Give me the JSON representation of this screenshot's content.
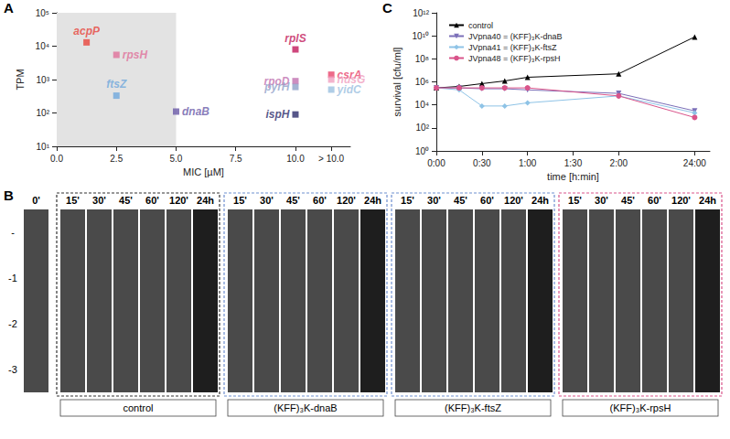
{
  "chart_data": [
    {
      "panel_label": "A",
      "type": "scatter",
      "x_label": "MIC [µM]",
      "y_label": "TPM",
      "log": "y",
      "marker": "square",
      "x": [
        1.25,
        2.5,
        2.5,
        5,
        10,
        10,
        10,
        10,
        11.5,
        11.5,
        11.5
      ],
      "values": [
        13000,
        5500,
        330,
        110,
        8000,
        900,
        600,
        90,
        1400,
        1000,
        500
      ],
      "point_labels": [
        "acpP",
        "rpsH",
        "ftsZ",
        "dnaB",
        "rplS",
        "rpoD",
        "pyrH",
        "ispH",
        "csrA",
        "nusG",
        "yidC"
      ],
      "colors": [
        "#e8453c",
        "#e0709a",
        "#6fa8dc",
        "#6a5aa8",
        "#c2185b",
        "#c070b0",
        "#8fa0c8",
        "#2c2c6c",
        "#e8456c",
        "#f0a0c0",
        "#9bc0e0"
      ],
      "highlight_range": [
        0,
        5
      ],
      "xlim": [
        0,
        12.3
      ],
      "xticks": [
        {
          "value": 0,
          "label": "0.0"
        },
        {
          "value": 2.5,
          "label": "2.5"
        },
        {
          "value": 5,
          "label": "5.0"
        },
        {
          "value": 7.5,
          "label": "7.5"
        },
        {
          "value": 10,
          "label": "10.0"
        },
        {
          "value": 11.5,
          "label": "> 10.0"
        }
      ],
      "ylim": [
        10,
        100000
      ],
      "yticks": [
        {
          "value": 10,
          "label": "10¹"
        },
        {
          "value": 100,
          "label": "10²"
        },
        {
          "value": 1000,
          "label": "10³"
        },
        {
          "value": 10000,
          "label": "10⁴"
        },
        {
          "value": 100000,
          "label": "10⁵"
        }
      ]
    },
    {
      "panel_label": "C",
      "type": "line",
      "x_label": "time [h:min]",
      "y_label": "survival [cfu/ml]",
      "log": "y",
      "legend": "upper left",
      "x": [
        0,
        15,
        30,
        45,
        60,
        120,
        170
      ],
      "series": [
        {
          "name": "control",
          "color": "#000000",
          "marker": "triangle",
          "values": [
            300000,
            400000,
            700000,
            1200000,
            2500000,
            5000000,
            8000000000
          ]
        },
        {
          "name": "JVpna40 = (KFF)₃K-dnaB",
          "color": "#7b6fb8",
          "marker": "triangle_down",
          "values": [
            300000,
            300000,
            250000,
            250000,
            200000,
            100000,
            3000
          ]
        },
        {
          "name": "JVpna41 = (KFF)₃K-ftsZ",
          "color": "#8ec3e6",
          "marker": "diamond",
          "values": [
            300000,
            200000,
            8000,
            8000,
            15000,
            60000,
            2000
          ]
        },
        {
          "name": "JVpna48 = (KFF)₃K-rpsH",
          "color": "#d9548a",
          "marker": "circle",
          "values": [
            300000,
            300000,
            300000,
            300000,
            300000,
            60000,
            800
          ]
        }
      ],
      "xlim": [
        0,
        180
      ],
      "xticks": [
        {
          "value": 0,
          "label": "0:00"
        },
        {
          "value": 30,
          "label": "0:30"
        },
        {
          "value": 60,
          "label": "1:00"
        },
        {
          "value": 90,
          "label": "1:30"
        },
        {
          "value": 120,
          "label": "2:00"
        },
        {
          "value": 170,
          "label": "24:00"
        }
      ],
      "ylim": [
        1,
        1000000000000
      ],
      "yticks": [
        {
          "value": 1,
          "label": "10⁰"
        },
        {
          "value": 100,
          "label": "10²"
        },
        {
          "value": 10000,
          "label": "10⁴"
        },
        {
          "value": 1000000,
          "label": "10⁶"
        },
        {
          "value": 100000000,
          "label": "10⁸"
        },
        {
          "value": 10000000000,
          "label": "10¹⁰"
        },
        {
          "value": 1000000000000,
          "label": "10¹²"
        }
      ]
    }
  ],
  "panel_b": {
    "panel_label": "B",
    "time_zero": "0'",
    "rows": [
      "-",
      "-1",
      "-2",
      "-3"
    ],
    "times": [
      "15'",
      "30'",
      "45'",
      "60'",
      "120'",
      "24h"
    ],
    "groups": [
      {
        "label": "control",
        "color": "#333333"
      },
      {
        "label": "(KFF)₃K-dnaB",
        "color": "#6f8fd0"
      },
      {
        "label": "(KFF)₃K-ftsZ",
        "color": "#6f8fd0"
      },
      {
        "label": "(KFF)₃K-rpsH",
        "color": "#d9548a"
      }
    ]
  }
}
